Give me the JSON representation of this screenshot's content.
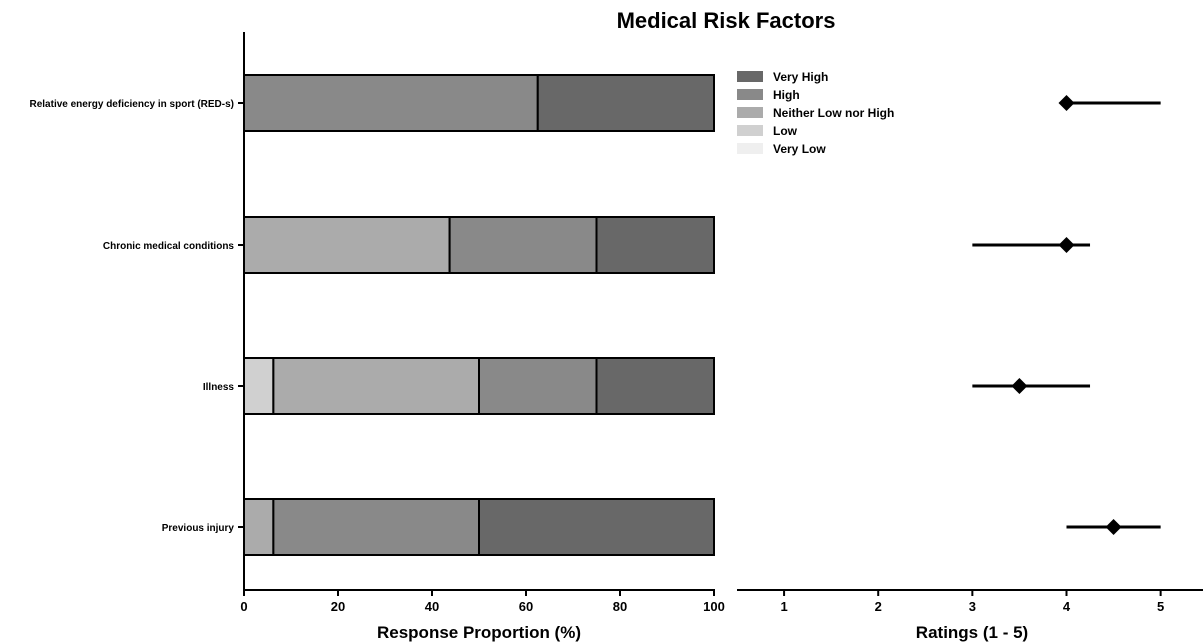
{
  "chart_data": [
    {
      "type": "bar",
      "orientation": "horizontal",
      "stacked": true,
      "title": "Medical Risk Factors",
      "xlabel": "Response Proportion (%)",
      "ylabel": "",
      "xlim": [
        0,
        100
      ],
      "xticks": [
        0,
        20,
        40,
        60,
        80,
        100
      ],
      "categories": [
        "Relative energy deficiency in sport (RED-s)",
        "Chronic medical conditions",
        "Illness",
        "Previous injury"
      ],
      "series": [
        {
          "name": "Very Low",
          "color": "#efefef",
          "values": [
            0,
            0,
            0,
            0
          ]
        },
        {
          "name": "Low",
          "color": "#d0d0d0",
          "values": [
            0,
            0,
            6.25,
            0
          ]
        },
        {
          "name": "Neither Low nor High",
          "color": "#ababab",
          "values": [
            0,
            43.75,
            43.75,
            6.25
          ]
        },
        {
          "name": "High",
          "color": "#898989",
          "values": [
            62.5,
            31.25,
            25,
            43.75
          ]
        },
        {
          "name": "Very High",
          "color": "#686868",
          "values": [
            37.5,
            25,
            25,
            50
          ]
        }
      ],
      "legend": {
        "placement": "top-right",
        "order": [
          "Very High",
          "High",
          "Neither Low nor High",
          "Low",
          "Very Low"
        ]
      },
      "grid": false
    },
    {
      "type": "scatter",
      "xlabel": "Ratings (1 - 5)",
      "xlim": [
        0.5,
        5.45
      ],
      "xticks": [
        1,
        2,
        3,
        4,
        5
      ],
      "categories": [
        "Relative energy deficiency in sport (RED-s)",
        "Chronic medical conditions",
        "Illness",
        "Previous injury"
      ],
      "points": [
        {
          "median": 4,
          "lower": 4,
          "upper": 5
        },
        {
          "median": 4,
          "lower": 3,
          "upper": 4.25
        },
        {
          "median": 3.5,
          "lower": 3,
          "upper": 4.25
        },
        {
          "median": 4.5,
          "lower": 4,
          "upper": 5
        }
      ],
      "marker": "diamond",
      "color": "#000000",
      "grid": false
    }
  ]
}
